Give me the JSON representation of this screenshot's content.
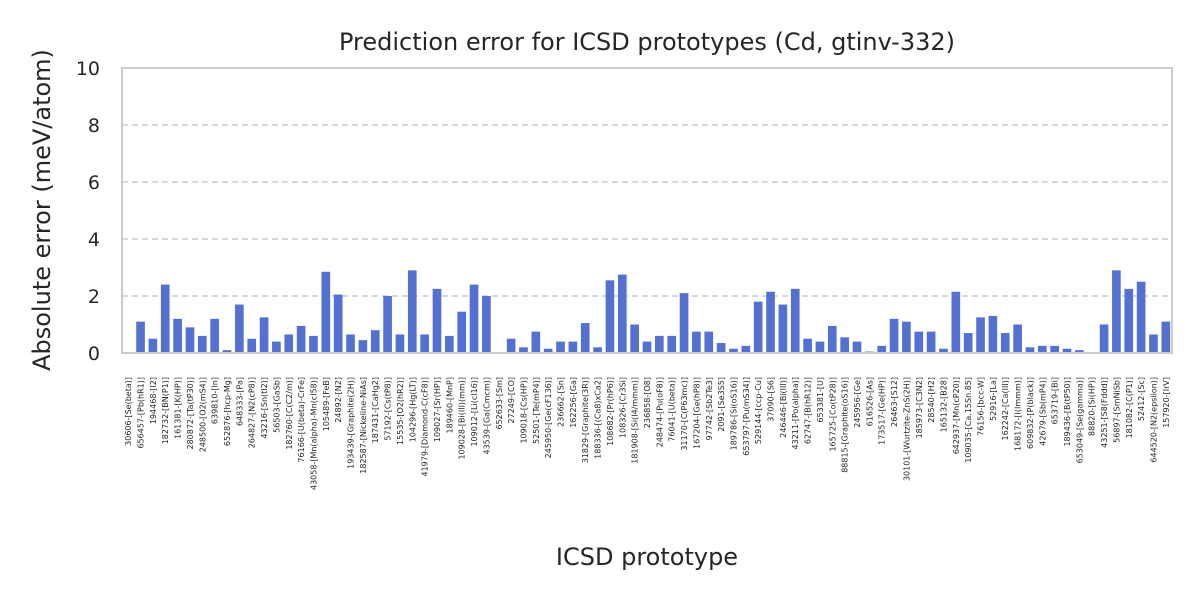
{
  "chart_data": {
    "type": "bar",
    "title": "Prediction error for ICSD prototypes (Cd, gtinv-332)",
    "xlabel": "ICSD prototype",
    "ylabel": "Absolute error (meV/atom)",
    "ylim": [
      0,
      10
    ],
    "yticks": [
      0,
      2,
      4,
      6,
      8,
      10
    ],
    "grid": true,
    "bar_color": "#5470d0",
    "categories": [
      "30606-[Se(beta)]",
      "656457-[Pb(hR1)]",
      "194468-[I2]",
      "182732-[BN(P1)]",
      "161381-[K(HP)]",
      "280872-[Ta(tP30)]",
      "248500-[O2(mS4)]",
      "639810-[In]",
      "652876-[hcp-Mg]",
      "648333-[Pa]",
      "264827-[N2(cP8)]",
      "43216-[Sn(tI2)]",
      "56503-[GaSb]",
      "182760-[C(C2/m)]",
      "76166-[U(beta)-CrFe]",
      "43058-[Mn(alpha)-Mn(cI58)]",
      "105489-[FeB]",
      "24892-[N2]",
      "193439-[Graphite(2H)]",
      "182587-[Nickeline-NiAs]",
      "187431-[CaHg2]",
      "57192-[Cs(tP8)]",
      "15535-[O2(hR2)]",
      "104296-[Hg(LT)]",
      "41979-[Diamond-C(cF8)]",
      "109027-[Sr(HP)]",
      "189460-[MnP]",
      "109028-[Bi(III)(mm)]",
      "109012-[Li(cI16)]",
      "43539-[Ga(Cmcm)]",
      "652633-[Sm]",
      "27249-[CO]",
      "109018-[Cs(HP)]",
      "52501-[Te(mP4)]",
      "245950-[Ge(cF136)]",
      "236662-[Sn]",
      "162256-[Ga]",
      "31829-[Graphite(3R)]",
      "188336-[(Ca8)xCa2]",
      "108682-[Pr(hP6)]",
      "108326-[Cr3Si]",
      "181908-[Si(I4/mmm)]",
      "236858-[O8]",
      "248474-[Pu(oF8)]",
      "76041-[U(beta)]",
      "31170-[C(P63mc)]",
      "167204-[Ge(hP8)]",
      "97742-[Sb2Te3]",
      "2091-[Se3S5]",
      "189786-[Si(oS16)]",
      "653797-[Pu(mS34)]",
      "529144-[ccp-Cu]",
      "37090-[S6]",
      "246446-[Bi(III)]",
      "43211-[Po(alpha)]",
      "62747-[B(hR12)]",
      "653381-[U]",
      "165725-[Co(tP28)]",
      "88815-[Graphite(oS16)]",
      "245956-[Ge]",
      "616526-[As]",
      "173517-[Ge(HP)]",
      "26463-[S12]",
      "30101-[Wurtzite-ZnS(2H)]",
      "185973-[C3N2]",
      "28540-[H2]",
      "165132-[B28]",
      "642937-[Mn(cP20)]",
      "109035-[Ca.15Sn.85]",
      "76156-[bcc-W]",
      "52916-[La]",
      "162242-[Ca(III)]",
      "168172-[I(Immm)]",
      "609832-[P(black)]",
      "42679-[Sb(mP4)]",
      "653719-[Bi]",
      "189436-[B(tP50)]",
      "653049-[Se(gamma)]",
      "88820-[Si(HP)]",
      "43251-[S8(Fddd)]",
      "56897-[SmNiSb]",
      "181082-[C(P1)]",
      "52412-[Sc]",
      "644520-[N2(epsilon)]",
      "157920-[IrV]"
    ],
    "values": [
      0.0,
      1.1,
      0.5,
      2.4,
      1.2,
      0.9,
      0.6,
      1.2,
      0.1,
      1.7,
      0.5,
      1.25,
      0.4,
      0.65,
      0.95,
      0.6,
      2.85,
      2.05,
      0.65,
      0.45,
      0.8,
      2.0,
      0.65,
      2.9,
      0.65,
      2.25,
      0.6,
      1.45,
      2.4,
      2.0,
      0.0,
      0.5,
      0.2,
      0.75,
      0.15,
      0.4,
      0.4,
      1.05,
      0.2,
      2.55,
      2.75,
      1.0,
      0.4,
      0.6,
      0.6,
      2.1,
      0.75,
      0.75,
      0.35,
      0.15,
      0.25,
      1.8,
      2.15,
      1.7,
      2.25,
      0.5,
      0.4,
      0.95,
      0.55,
      0.4,
      0.05,
      0.25,
      1.2,
      1.1,
      0.75,
      0.75,
      0.15,
      2.15,
      0.7,
      1.25,
      1.3,
      0.7,
      1.0,
      0.2,
      0.25,
      0.25,
      0.15,
      0.1,
      0.0,
      1.0,
      2.9,
      2.25,
      2.5,
      0.65,
      1.1
    ]
  }
}
